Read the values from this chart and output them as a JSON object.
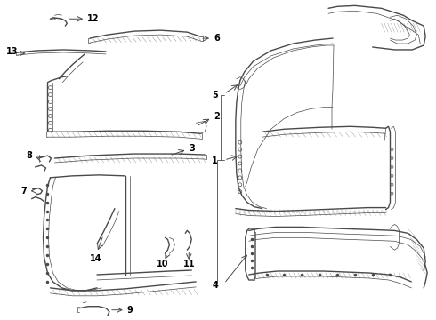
{
  "background_color": "#ffffff",
  "line_color": "#4a4a4a",
  "text_color": "#000000",
  "fig_width": 4.9,
  "fig_height": 3.6,
  "dpi": 100,
  "lw_main": 1.0,
  "lw_thin": 0.5,
  "lw_hatch": 0.3,
  "font_size": 7.0
}
